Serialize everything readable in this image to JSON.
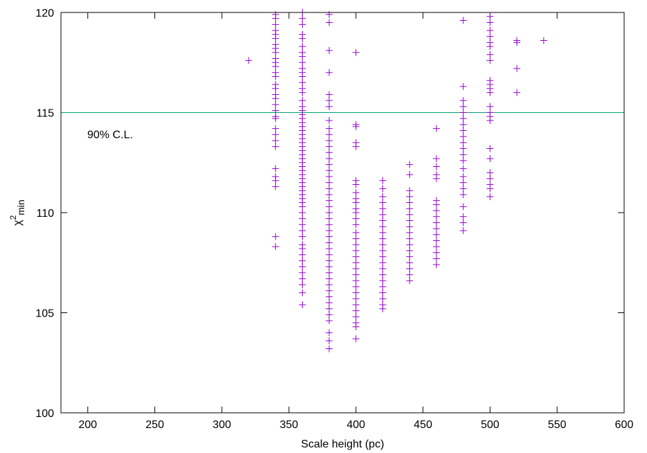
{
  "chart_data": {
    "type": "scatter",
    "title": "",
    "xlabel": "Scale height (pc)",
    "ylabel": {
      "base": "χ",
      "sup": "2",
      "sub": "min"
    },
    "xlim": [
      180,
      600
    ],
    "ylim": [
      100,
      120
    ],
    "xticks": [
      200,
      250,
      300,
      350,
      400,
      450,
      500,
      550,
      600
    ],
    "yticks": [
      100,
      105,
      110,
      115,
      120
    ],
    "grid": false,
    "point_color": "#9400d3",
    "reference_line": {
      "y": 115,
      "label": "90% C.L.",
      "color": "#009e73"
    },
    "series": [
      {
        "marker": "plus",
        "points": [
          {
            "x": 320,
            "ys": [
              117.6
            ]
          },
          {
            "x": 340,
            "ys": [
              119.9,
              119.7,
              119.4,
              119.1,
              118.9,
              118.7,
              118.4,
              118.2,
              118.0,
              117.7,
              117.5,
              117.3,
              117.0,
              116.8,
              116.4,
              116.2,
              115.9,
              115.7,
              115.4,
              115.1,
              114.8,
              114.7,
              114.2,
              113.9,
              113.6,
              113.3,
              112.2,
              111.8,
              111.6,
              111.3,
              108.8,
              108.3
            ]
          },
          {
            "x": 360,
            "ys": [
              120.0,
              119.7,
              119.4,
              118.9,
              118.7,
              118.3,
              118.0,
              117.8,
              117.5,
              117.2,
              117.0,
              116.8,
              116.5,
              116.2,
              116.0,
              115.6,
              115.3,
              115.1,
              114.9,
              114.7,
              114.5,
              114.3,
              114.1,
              113.9,
              113.7,
              113.5,
              113.3,
              113.1,
              112.9,
              112.7,
              112.5,
              112.3,
              112.1,
              111.9,
              111.7,
              111.5,
              111.3,
              111.1,
              110.9,
              110.7,
              110.5,
              110.3,
              110.0,
              109.7,
              109.4,
              109.1,
              108.8,
              108.4,
              108.2,
              107.9,
              107.6,
              107.3,
              107.0,
              106.7,
              106.4,
              106.0,
              105.4
            ]
          },
          {
            "x": 380,
            "ys": [
              119.9,
              119.5,
              118.1,
              117.0,
              115.9,
              115.6,
              115.3,
              114.6,
              114.2,
              113.9,
              113.6,
              113.3,
              113.0,
              112.7,
              112.4,
              112.1,
              111.8,
              111.5,
              111.2,
              110.9,
              110.6,
              110.3,
              110.0,
              109.7,
              109.4,
              109.1,
              108.8,
              108.5,
              108.2,
              107.9,
              107.6,
              107.3,
              107.0,
              106.7,
              106.4,
              106.1,
              105.8,
              105.5,
              105.2,
              104.9,
              104.6,
              104.0,
              103.6,
              103.2
            ]
          },
          {
            "x": 400,
            "ys": [
              118.0,
              114.4,
              114.3,
              113.5,
              113.3,
              111.6,
              111.4,
              111.0,
              110.7,
              110.5,
              110.2,
              110.0,
              109.7,
              109.4,
              109.0,
              108.7,
              108.4,
              108.1,
              107.8,
              107.5,
              107.2,
              106.9,
              106.6,
              106.3,
              106.0,
              105.7,
              105.4,
              105.1,
              104.8,
              104.5,
              104.3,
              103.7
            ]
          },
          {
            "x": 420,
            "ys": [
              111.6,
              111.2,
              110.8,
              110.5,
              110.2,
              109.9,
              109.6,
              109.3,
              109.0,
              108.7,
              108.4,
              108.1,
              107.8,
              107.5,
              107.2,
              106.9,
              106.6,
              106.3,
              106.0,
              105.7,
              105.4,
              105.2
            ]
          },
          {
            "x": 440,
            "ys": [
              112.4,
              111.9,
              111.1,
              110.8,
              110.5,
              110.2,
              109.9,
              109.6,
              109.3,
              109.0,
              108.7,
              108.4,
              108.1,
              107.8,
              107.5,
              107.2,
              106.9,
              106.6
            ]
          },
          {
            "x": 460,
            "ys": [
              114.2,
              112.7,
              112.3,
              111.9,
              111.7,
              110.6,
              110.4,
              110.1,
              109.8,
              109.5,
              109.2,
              108.9,
              108.6,
              108.3,
              108.0,
              107.7,
              107.4
            ]
          },
          {
            "x": 480,
            "ys": [
              119.6,
              116.3,
              115.6,
              115.3,
              115.0,
              114.7,
              114.4,
              114.1,
              113.8,
              113.5,
              113.2,
              112.9,
              112.6,
              112.2,
              111.8,
              111.5,
              111.2,
              110.9,
              110.3,
              109.8,
              109.5,
              109.1
            ]
          },
          {
            "x": 500,
            "ys": [
              119.8,
              119.5,
              119.1,
              118.8,
              118.5,
              118.3,
              117.9,
              117.6,
              116.6,
              116.4,
              116.2,
              116.0,
              115.3,
              115.0,
              114.8,
              114.6,
              113.2,
              112.7,
              112.0,
              111.7,
              111.4,
              111.2,
              110.8
            ]
          },
          {
            "x": 520,
            "ys": [
              118.6,
              118.5,
              117.2,
              116.0
            ]
          },
          {
            "x": 540,
            "ys": [
              118.6
            ]
          }
        ]
      }
    ]
  }
}
